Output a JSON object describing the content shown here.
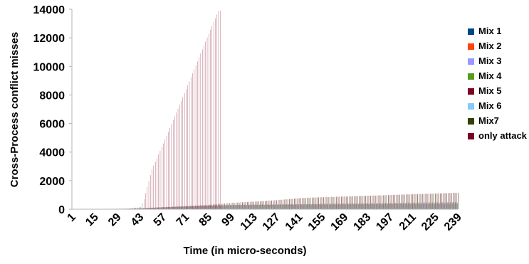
{
  "chart_data": {
    "type": "bar",
    "xlabel": "Time (in micro-seconds)",
    "ylabel": "Cross-Process conflict misses",
    "ylim": [
      0,
      14000
    ],
    "yticks": [
      "0",
      "2000",
      "4000",
      "6000",
      "8000",
      "10000",
      "12000",
      "14000"
    ],
    "x": [
      1,
      239
    ],
    "xticks": [
      "1",
      "15",
      "29",
      "43",
      "57",
      "71",
      "85",
      "99",
      "113",
      "127",
      "141",
      "155",
      "169",
      "183",
      "197",
      "211",
      "225",
      "239"
    ],
    "legend_position": "right",
    "grid": false,
    "series": [
      {
        "name": "Mix 1",
        "color": "#004586",
        "points": [
          [
            1,
            0
          ],
          [
            20,
            10
          ],
          [
            35,
            30
          ],
          [
            43,
            60
          ],
          [
            57,
            130
          ],
          [
            71,
            200
          ],
          [
            85,
            260
          ],
          [
            99,
            300
          ],
          [
            113,
            320
          ],
          [
            127,
            340
          ],
          [
            141,
            360
          ],
          [
            155,
            380
          ],
          [
            169,
            400
          ],
          [
            183,
            420
          ],
          [
            197,
            440
          ],
          [
            211,
            460
          ],
          [
            225,
            480
          ],
          [
            239,
            500
          ]
        ]
      },
      {
        "name": "Mix 2",
        "color": "#ff420e",
        "points": [
          [
            1,
            0
          ],
          [
            35,
            30
          ],
          [
            43,
            60
          ],
          [
            57,
            120
          ],
          [
            71,
            180
          ],
          [
            85,
            240
          ],
          [
            99,
            280
          ],
          [
            113,
            300
          ],
          [
            127,
            320
          ],
          [
            141,
            340
          ],
          [
            155,
            360
          ],
          [
            169,
            370
          ],
          [
            183,
            380
          ],
          [
            197,
            390
          ],
          [
            211,
            400
          ],
          [
            225,
            410
          ],
          [
            239,
            420
          ]
        ]
      },
      {
        "name": "Mix 3",
        "color": "#9999ff",
        "points": [
          [
            1,
            0
          ],
          [
            35,
            30
          ],
          [
            43,
            60
          ],
          [
            57,
            110
          ],
          [
            71,
            170
          ],
          [
            85,
            230
          ],
          [
            99,
            270
          ],
          [
            113,
            290
          ],
          [
            127,
            300
          ],
          [
            141,
            310
          ],
          [
            155,
            320
          ],
          [
            169,
            330
          ],
          [
            183,
            340
          ],
          [
            197,
            350
          ],
          [
            211,
            360
          ],
          [
            225,
            370
          ],
          [
            239,
            380
          ]
        ]
      },
      {
        "name": "Mix 4",
        "color": "#579d1c",
        "points": [
          [
            1,
            0
          ],
          [
            35,
            30
          ],
          [
            43,
            60
          ],
          [
            57,
            120
          ],
          [
            71,
            180
          ],
          [
            85,
            240
          ],
          [
            99,
            280
          ],
          [
            113,
            300
          ],
          [
            127,
            310
          ],
          [
            141,
            320
          ],
          [
            155,
            330
          ],
          [
            169,
            340
          ],
          [
            183,
            350
          ],
          [
            197,
            360
          ],
          [
            211,
            370
          ],
          [
            225,
            380
          ],
          [
            239,
            390
          ]
        ]
      },
      {
        "name": "Mix 5",
        "color": "#7e0021",
        "points": [
          [
            1,
            0
          ],
          [
            35,
            40
          ],
          [
            43,
            70
          ],
          [
            57,
            150
          ],
          [
            71,
            230
          ],
          [
            85,
            310
          ],
          [
            99,
            450
          ],
          [
            113,
            540
          ],
          [
            127,
            640
          ],
          [
            141,
            780
          ],
          [
            155,
            850
          ],
          [
            169,
            900
          ],
          [
            183,
            950
          ],
          [
            197,
            1000
          ],
          [
            211,
            1060
          ],
          [
            225,
            1110
          ],
          [
            239,
            1160
          ]
        ]
      },
      {
        "name": "Mix 6",
        "color": "#83caff",
        "points": [
          [
            1,
            0
          ],
          [
            35,
            30
          ],
          [
            43,
            60
          ],
          [
            57,
            110
          ],
          [
            71,
            160
          ],
          [
            85,
            220
          ],
          [
            99,
            260
          ],
          [
            113,
            280
          ],
          [
            127,
            290
          ],
          [
            141,
            300
          ],
          [
            155,
            310
          ],
          [
            169,
            320
          ],
          [
            183,
            330
          ],
          [
            197,
            340
          ],
          [
            211,
            350
          ],
          [
            225,
            360
          ],
          [
            239,
            370
          ]
        ]
      },
      {
        "name": "Mix7",
        "color": "#314004",
        "points": [
          [
            1,
            0
          ],
          [
            35,
            35
          ],
          [
            43,
            65
          ],
          [
            57,
            140
          ],
          [
            71,
            210
          ],
          [
            85,
            290
          ],
          [
            99,
            420
          ],
          [
            113,
            520
          ],
          [
            127,
            620
          ],
          [
            141,
            760
          ],
          [
            155,
            830
          ],
          [
            169,
            880
          ],
          [
            183,
            930
          ],
          [
            197,
            980
          ],
          [
            211,
            1040
          ],
          [
            225,
            1090
          ],
          [
            239,
            1140
          ]
        ]
      },
      {
        "name": "only attack",
        "color": "#7e0021",
        "points": [
          [
            1,
            0
          ],
          [
            35,
            40
          ],
          [
            43,
            150
          ],
          [
            45,
            700
          ],
          [
            50,
            2800
          ],
          [
            57,
            4600
          ],
          [
            71,
            8400
          ],
          [
            85,
            12300
          ],
          [
            91,
            13900
          ],
          [
            92,
            13900
          ]
        ]
      }
    ]
  }
}
